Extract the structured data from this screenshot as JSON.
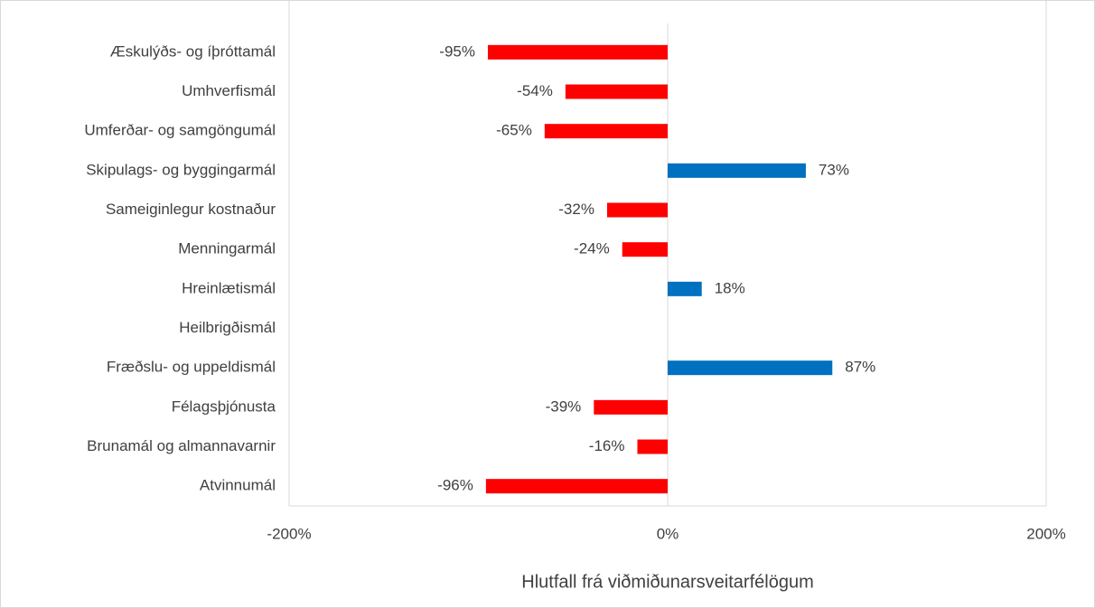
{
  "chart_data": {
    "type": "barh",
    "categories": [
      "Æskulýðs- og íþróttamál",
      "Umhverfismál",
      "Umferðar- og samgöngumál",
      "Skipulags- og byggingarmál",
      "Sameiginlegur kostnaður",
      "Menningarmál",
      "Hreinlætismál",
      "Heilbrigðismál",
      "Fræðslu- og uppeldismál",
      "Félagsþjónusta",
      "Brunamál og almannavarnir",
      "Atvinnumál"
    ],
    "values": [
      -95,
      -54,
      -65,
      73,
      -32,
      -24,
      18,
      null,
      87,
      -39,
      -16,
      -96
    ],
    "value_labels": [
      "-95%",
      "-54%",
      "-65%",
      "73%",
      "-32%",
      "-24%",
      "18%",
      null,
      "87%",
      "-39%",
      "-16%",
      "-96%"
    ],
    "color": "#0070c0",
    "negative_color": "#ff0000",
    "xlim": [
      -200,
      200
    ],
    "xticks": [
      {
        "value": -200,
        "label": "-200%"
      },
      {
        "value": 0,
        "label": "0%"
      },
      {
        "value": 200,
        "label": "200%"
      }
    ],
    "xlabel": "Hlutfall frá viðmiðunarsveitarfélögum"
  }
}
